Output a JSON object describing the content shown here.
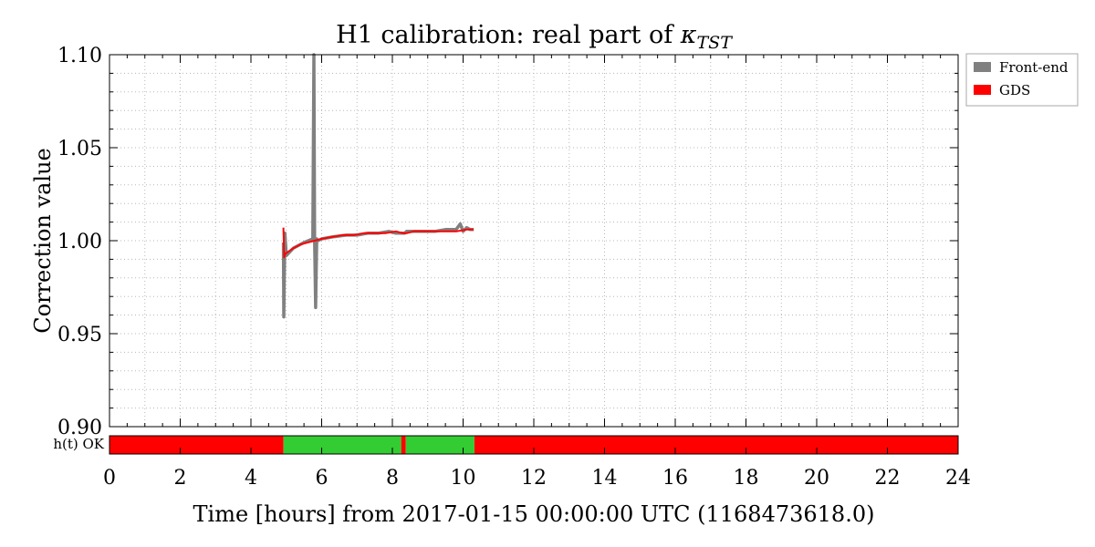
{
  "chart_data": {
    "type": "line",
    "title": {
      "prefix": "H1 calibration: real part of ",
      "symbol": "κ",
      "subscript": "TST"
    },
    "xlabel": "Time [hours] from 2017-01-15 00:00:00 UTC (1168473618.0)",
    "ylabel": "Correction value",
    "xlim": [
      0,
      24
    ],
    "ylim": [
      0.9,
      1.1
    ],
    "xticks": [
      0,
      2,
      4,
      6,
      8,
      10,
      12,
      14,
      16,
      18,
      20,
      22,
      24
    ],
    "yticks": [
      0.9,
      0.95,
      1.0,
      1.05,
      1.1
    ],
    "ytick_labels": [
      "0.90",
      "0.95",
      "1.00",
      "1.05",
      "1.10"
    ],
    "grid": true,
    "legend_position": "outside-top-right",
    "series": [
      {
        "name": "Front-end",
        "color": "#808080",
        "x": [
          4.92,
          4.93,
          4.96,
          5.0,
          5.2,
          5.5,
          5.75,
          5.78,
          5.8,
          5.83,
          5.86,
          5.9,
          6.0,
          6.3,
          6.7,
          7.0,
          7.3,
          7.6,
          7.9,
          8.1,
          8.2,
          8.35,
          8.4,
          8.6,
          8.9,
          9.2,
          9.5,
          9.8,
          9.92,
          10.0,
          10.1,
          10.2,
          10.3
        ],
        "y": [
          0.999,
          0.959,
          1.004,
          0.992,
          0.996,
          0.999,
          1.001,
          1.101,
          0.999,
          0.964,
          1.001,
          1.0,
          1.001,
          1.002,
          1.003,
          1.003,
          1.004,
          1.004,
          1.005,
          1.004,
          1.004,
          1.004,
          1.005,
          1.005,
          1.005,
          1.005,
          1.006,
          1.006,
          1.009,
          1.005,
          1.007,
          1.006,
          1.006
        ]
      },
      {
        "name": "GDS",
        "color": "#ff0000",
        "x": [
          4.92,
          4.94,
          4.97,
          5.05,
          5.2,
          5.4,
          5.6,
          5.8,
          6.0,
          6.3,
          6.6,
          6.9,
          7.2,
          7.5,
          7.8,
          8.1,
          8.3,
          8.4,
          8.6,
          8.9,
          9.2,
          9.5,
          9.8,
          10.1,
          10.3
        ],
        "y": [
          1.007,
          0.991,
          0.993,
          0.994,
          0.996,
          0.998,
          0.999,
          1.0,
          1.001,
          1.002,
          1.003,
          1.003,
          1.004,
          1.004,
          1.004,
          1.005,
          1.004,
          1.004,
          1.005,
          1.005,
          1.005,
          1.005,
          1.005,
          1.006,
          1.006
        ]
      }
    ],
    "status_bar": {
      "label": "h(t) OK",
      "ok_color": "#33cc33",
      "bad_color": "#ff0000",
      "segments": [
        {
          "start": 0,
          "end": 4.92,
          "ok": false
        },
        {
          "start": 4.92,
          "end": 8.25,
          "ok": true
        },
        {
          "start": 8.25,
          "end": 8.38,
          "ok": false
        },
        {
          "start": 8.38,
          "end": 10.32,
          "ok": true
        },
        {
          "start": 10.32,
          "end": 24,
          "ok": false
        }
      ]
    }
  }
}
